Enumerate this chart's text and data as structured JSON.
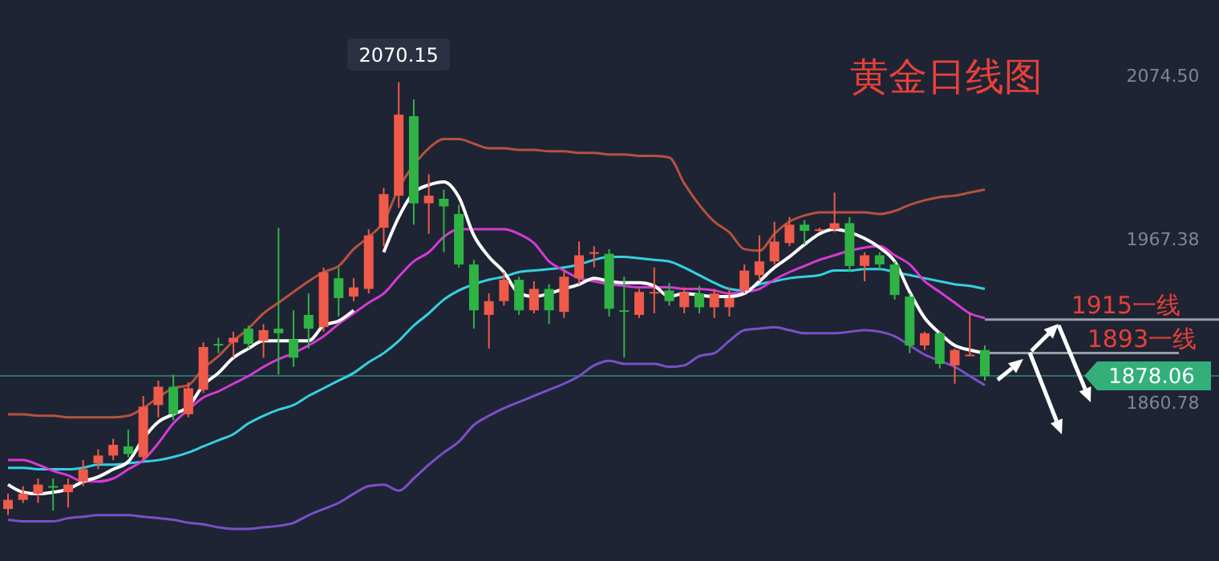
{
  "chart_data": {
    "type": "candlestick",
    "title": "黄金日线图",
    "categories": [
      null,
      null,
      null,
      null,
      null,
      null,
      null,
      null,
      null,
      null,
      null,
      null,
      null,
      null,
      null,
      null,
      null,
      null,
      null,
      null,
      null,
      null,
      null,
      null,
      null,
      null,
      null,
      null,
      null,
      null,
      null,
      null,
      null,
      null,
      null,
      null,
      null,
      null,
      null,
      null,
      null,
      null,
      null,
      null,
      null,
      null,
      null,
      null,
      null,
      null,
      null,
      null,
      null,
      null,
      null,
      null,
      null,
      null,
      null,
      null,
      null,
      null,
      null,
      null,
      null,
      null
    ],
    "ohlc": [
      [
        1791,
        1801,
        1787,
        1797
      ],
      [
        1797,
        1806,
        1795,
        1801
      ],
      [
        1801,
        1811,
        1795,
        1807
      ],
      [
        1806,
        1811,
        1790,
        1805
      ],
      [
        1802,
        1811,
        1792,
        1807
      ],
      [
        1809,
        1823,
        1806,
        1817
      ],
      [
        1821,
        1830,
        1817,
        1826
      ],
      [
        1826,
        1837,
        1823,
        1833
      ],
      [
        1832,
        1843,
        1825,
        1827
      ],
      [
        1825,
        1865,
        1823,
        1858
      ],
      [
        1859,
        1875,
        1851,
        1871
      ],
      [
        1871,
        1879,
        1849,
        1853
      ],
      [
        1853,
        1874,
        1851,
        1870
      ],
      [
        1869,
        1900,
        1867,
        1897
      ],
      [
        1899,
        1903,
        1893,
        1898
      ],
      [
        1900,
        1907,
        1890,
        1903
      ],
      [
        1909,
        1911,
        1896,
        1899
      ],
      [
        1901,
        1912,
        1890,
        1908
      ],
      [
        1909,
        1975,
        1879,
        1906
      ],
      [
        1902,
        1921,
        1884,
        1890
      ],
      [
        1918,
        1932,
        1896,
        1909
      ],
      [
        1910,
        1949,
        1907,
        1946
      ],
      [
        1942,
        1949,
        1917,
        1929
      ],
      [
        1930,
        1942,
        1927,
        1936
      ],
      [
        1935,
        1974,
        1932,
        1970
      ],
      [
        1975,
        2001,
        1963,
        1997
      ],
      [
        1996,
        2070.15,
        1988,
        2049
      ],
      [
        2048,
        2059,
        1977,
        1991
      ],
      [
        1991,
        2010,
        1971,
        1996
      ],
      [
        1994,
        2000,
        1959,
        1989
      ],
      [
        1984,
        1990,
        1949,
        1951
      ],
      [
        1951,
        1954,
        1909,
        1921
      ],
      [
        1918,
        1932,
        1896,
        1927
      ],
      [
        1927,
        1946,
        1924,
        1941
      ],
      [
        1941,
        1943,
        1918,
        1921
      ],
      [
        1921,
        1940,
        1919,
        1935
      ],
      [
        1935,
        1938,
        1912,
        1921
      ],
      [
        1920,
        1948,
        1916,
        1943
      ],
      [
        1942,
        1966,
        1938,
        1957
      ],
      [
        1958,
        1963,
        1949,
        1959
      ],
      [
        1958,
        1961,
        1917,
        1922
      ],
      [
        1921,
        1943,
        1890,
        1920
      ],
      [
        1918,
        1935,
        1916,
        1933
      ],
      [
        1932,
        1949,
        1919,
        1933
      ],
      [
        1934,
        1939,
        1924,
        1927
      ],
      [
        1923,
        1936,
        1919,
        1933
      ],
      [
        1932,
        1937,
        1919,
        1923
      ],
      [
        1923,
        1935,
        1916,
        1932
      ],
      [
        1923,
        1936,
        1917,
        1929
      ],
      [
        1934,
        1951,
        1932,
        1947
      ],
      [
        1944,
        1970,
        1940,
        1953
      ],
      [
        1953,
        1979,
        1951,
        1966
      ],
      [
        1965,
        1982,
        1963,
        1977
      ],
      [
        1977,
        1980,
        1964,
        1973
      ],
      [
        1973,
        1975,
        1972,
        1974
      ],
      [
        1974,
        1998,
        1972,
        1978
      ],
      [
        1978,
        1982,
        1946,
        1950
      ],
      [
        1950,
        1959,
        1940,
        1957
      ],
      [
        1957,
        1959,
        1948,
        1951
      ],
      [
        1951,
        1953,
        1928,
        1931
      ],
      [
        1930,
        1932,
        1893,
        1898
      ],
      [
        1898,
        1907,
        1895,
        1906
      ],
      [
        1906,
        1907,
        1883,
        1886
      ],
      [
        1885,
        1896,
        1873,
        1895
      ],
      [
        1891,
        1919,
        1891,
        1892
      ],
      [
        1895,
        1898,
        1875,
        1878.06
      ]
    ],
    "colors": [
      "#ef5a4a",
      "#ef5a4a",
      "#ef5a4a",
      "#2fb344",
      "#ef5a4a",
      "#ef5a4a",
      "#ef5a4a",
      "#ef5a4a",
      "#2fb344",
      "#ef5a4a",
      "#ef5a4a",
      "#2fb344",
      "#ef5a4a",
      "#ef5a4a",
      "#2fb344",
      "#ef5a4a",
      "#2fb344",
      "#ef5a4a",
      "#2fb344",
      "#2fb344",
      "#2fb344",
      "#ef5a4a",
      "#2fb344",
      "#ef5a4a",
      "#ef5a4a",
      "#ef5a4a",
      "#ef5a4a",
      "#2fb344",
      "#ef5a4a",
      "#2fb344",
      "#2fb344",
      "#2fb344",
      "#ef5a4a",
      "#ef5a4a",
      "#2fb344",
      "#ef5a4a",
      "#2fb344",
      "#ef5a4a",
      "#ef5a4a",
      "#ef5a4a",
      "#2fb344",
      "#2fb344",
      "#ef5a4a",
      "#ef5a4a",
      "#2fb344",
      "#ef5a4a",
      "#2fb344",
      "#ef5a4a",
      "#ef5a4a",
      "#ef5a4a",
      "#ef5a4a",
      "#ef5a4a",
      "#ef5a4a",
      "#2fb344",
      "#ef5a4a",
      "#ef5a4a",
      "#2fb344",
      "#ef5a4a",
      "#2fb344",
      "#2fb344",
      "#2fb344",
      "#ef5a4a",
      "#2fb344",
      "#ef5a4a",
      "#ef5a4a",
      "#2fb344"
    ],
    "series": [
      {
        "type": "line",
        "color": "#b5523f",
        "values": [
          1853,
          1853,
          1852,
          1852,
          1851,
          1851,
          1851,
          1851,
          1852,
          1857,
          1864,
          1870,
          1872,
          1883,
          1891,
          1901,
          1909,
          1919,
          1926,
          1933,
          1940,
          1946,
          1950,
          1961,
          1969,
          1979,
          2001,
          2016,
          2027,
          2033,
          2033,
          2030,
          2027,
          2027,
          2026,
          2026,
          2025,
          2025,
          2024,
          2024,
          2023,
          2023,
          2022,
          2022,
          2021,
          2004,
          1990,
          1979,
          1972,
          1961,
          1960,
          1971,
          1979,
          1983,
          1985,
          1985,
          1985,
          1985,
          1984,
          1986,
          1990,
          1993,
          1995,
          1996,
          1998,
          2000
        ]
      },
      {
        "type": "line",
        "color": "#7b4fc9",
        "values": [
          1784,
          1783,
          1783,
          1783,
          1785,
          1786,
          1787,
          1787,
          1787,
          1786,
          1785,
          1784,
          1782,
          1781,
          1779,
          1778,
          1778,
          1779,
          1780,
          1782,
          1787,
          1791,
          1795,
          1801,
          1806,
          1807,
          1803,
          1811,
          1820,
          1828,
          1835,
          1846,
          1852,
          1857,
          1861,
          1865,
          1869,
          1873,
          1878,
          1885,
          1888,
          1886,
          1886,
          1886,
          1884,
          1885,
          1891,
          1893,
          1901,
          1908,
          1909,
          1910,
          1908,
          1906,
          1906,
          1906,
          1907,
          1908,
          1907,
          1904,
          1898,
          1892,
          1888,
          1884,
          1878,
          1872
        ]
      },
      {
        "type": "line",
        "color": "#35d0e0",
        "values": [
          1818,
          1818,
          1817,
          1817,
          1817,
          1818,
          1820,
          1820,
          1821,
          1822,
          1823,
          1825,
          1828,
          1832,
          1836,
          1840,
          1847,
          1852,
          1856,
          1859,
          1865,
          1870,
          1875,
          1880,
          1887,
          1893,
          1901,
          1911,
          1919,
          1928,
          1934,
          1938,
          1941,
          1943,
          1946,
          1947,
          1948,
          1949,
          1951,
          1954,
          1956,
          1956,
          1955,
          1954,
          1953,
          1949,
          1944,
          1939,
          1935,
          1934,
          1938,
          1940,
          1942,
          1943,
          1944,
          1947,
          1947,
          1948,
          1948,
          1946,
          1944,
          1942,
          1940,
          1938,
          1937,
          1935
        ]
      },
      {
        "type": "line",
        "color": "#d63ad6",
        "values": [
          1823,
          1823,
          1820,
          1816,
          1813,
          1809,
          1809,
          1811,
          1817,
          1823,
          1834,
          1847,
          1856,
          1864,
          1868,
          1873,
          1878,
          1884,
          1889,
          1893,
          1898,
          1904,
          1912,
          1919,
          1926,
          1932,
          1943,
          1953,
          1959,
          1969,
          1974,
          1974,
          1974,
          1974,
          1971,
          1965,
          1953,
          1947,
          1942,
          1940,
          1938,
          1937,
          1936,
          1936,
          1936,
          1935,
          1935,
          1934,
          1932,
          1933,
          1935,
          1941,
          1946,
          1950,
          1954,
          1957,
          1960,
          1962,
          1963,
          1957,
          1951,
          1940,
          1933,
          1926,
          1919,
          1916
        ]
      },
      {
        "type": "line",
        "color": "#ffffff",
        "values": [
          1807,
          1802,
          1801,
          1802,
          1804,
          1809,
          1812,
          1817,
          1822,
          1837,
          1848,
          1853,
          1858,
          1872,
          1880,
          1890,
          1896,
          1901,
          1901,
          1901,
          1901,
          1911,
          1914,
          1921,
          null,
          1959,
          1982,
          1998,
          2003,
          2005,
          1995,
          1970,
          1956,
          1946,
          1932,
          1930,
          1932,
          1935,
          1938,
          1942,
          1940,
          1939,
          1939,
          1937,
          1930,
          1932,
          1931,
          1930,
          1930,
          1932,
          1940,
          1949,
          1956,
          1964,
          1971,
          1974,
          1972,
          1968,
          1962,
          1953,
          1933,
          1916,
          1906,
          1898,
          1895,
          1893
        ]
      }
    ],
    "ylim": [
      1757,
      2124
    ],
    "yticks": [
      {
        "value": 2074.5,
        "label": "2074.50"
      },
      {
        "value": 1967.38,
        "label": "1967.38"
      },
      {
        "value": 1860.78,
        "label": "1860.78"
      }
    ],
    "tick_labels": "y",
    "ref_lines": [
      {
        "axis": "y",
        "value": 1878.06,
        "label": "1878.06",
        "color": "#2f6f6a"
      },
      {
        "axis": "y",
        "value": 1915,
        "label": "1915一线",
        "color": "#9aa0aa"
      },
      {
        "axis": "y",
        "value": 1893,
        "label": "1893一线",
        "color": "#9aa0aa"
      }
    ],
    "annotations": [
      "2070.15"
    ]
  }
}
